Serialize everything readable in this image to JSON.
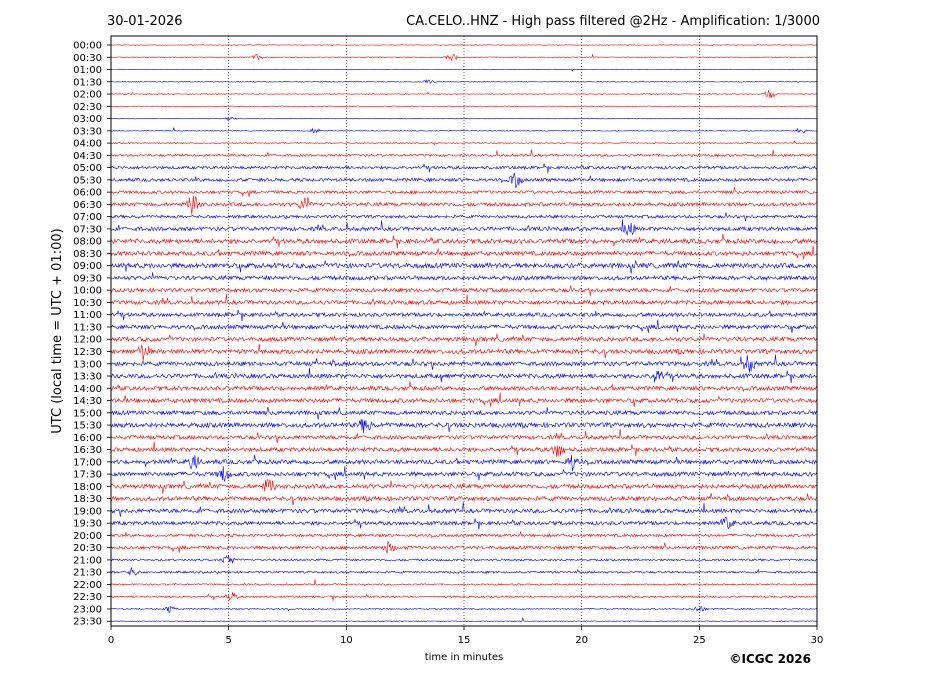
{
  "header": {
    "date": "30-01-2026",
    "title": "CA.CELO..HNZ - High pass filtered @2Hz - Amplification: 1/3000"
  },
  "footer": {
    "copyright": "©ICGC 2026"
  },
  "chart_data": {
    "type": "line",
    "title": "CA.CELO..HNZ - High pass filtered @2Hz - Amplification: 1/3000",
    "xlabel": "time in minutes",
    "ylabel": "UTC (local time = UTC + 01:00)",
    "xlim": [
      0,
      30
    ],
    "x_ticks": [
      0,
      5,
      10,
      15,
      20,
      25,
      30
    ],
    "x_tick_labels": [
      "0",
      "5",
      "10",
      "15",
      "20",
      "25",
      "30"
    ],
    "vertical_gridlines_at": [
      5,
      10,
      15,
      20,
      25
    ],
    "y_tick_labels": [
      "00:00",
      "00:30",
      "01:00",
      "01:30",
      "02:00",
      "02:30",
      "03:00",
      "03:30",
      "04:00",
      "04:30",
      "05:00",
      "05:30",
      "06:00",
      "06:30",
      "07:00",
      "07:30",
      "08:00",
      "08:30",
      "09:00",
      "09:30",
      "10:00",
      "10:30",
      "11:00",
      "11:30",
      "12:00",
      "12:30",
      "13:00",
      "13:30",
      "14:00",
      "14:30",
      "15:00",
      "15:30",
      "16:00",
      "16:30",
      "17:00",
      "17:30",
      "18:00",
      "18:30",
      "19:00",
      "19:30",
      "20:00",
      "20:30",
      "21:00",
      "21:30",
      "22:00",
      "22:30",
      "23:00",
      "23:30"
    ],
    "trace_colors": [
      "#ff0000",
      "#0000ff"
    ],
    "trace_color_pattern": "alternating per hour: red traces on even hours, blue traces on odd hours",
    "trace_activity": [
      0.02,
      0.06,
      0.02,
      0.05,
      0.06,
      0.02,
      0.03,
      0.05,
      0.12,
      0.38,
      0.55,
      0.6,
      0.55,
      0.7,
      0.55,
      0.75,
      0.9,
      0.85,
      1.0,
      0.8,
      0.75,
      0.8,
      0.75,
      0.8,
      0.85,
      0.9,
      0.85,
      0.85,
      0.8,
      0.85,
      0.8,
      0.95,
      0.75,
      0.8,
      0.85,
      0.85,
      0.85,
      0.85,
      0.8,
      0.7,
      0.5,
      0.6,
      0.35,
      0.35,
      0.25,
      0.25,
      0.15,
      0.05
    ],
    "events": [
      {
        "trace": "00:30",
        "minute": 6.2,
        "amplitude": 0.5
      },
      {
        "trace": "00:30",
        "minute": 14.5,
        "amplitude": 0.6
      },
      {
        "trace": "01:30",
        "minute": 13.5,
        "amplitude": 0.4
      },
      {
        "trace": "02:00",
        "minute": 28.0,
        "amplitude": 0.8
      },
      {
        "trace": "03:00",
        "minute": 5.1,
        "amplitude": 0.3
      },
      {
        "trace": "03:30",
        "minute": 8.7,
        "amplitude": 0.5
      },
      {
        "trace": "03:30",
        "minute": 29.3,
        "amplitude": 0.5
      },
      {
        "trace": "05:30",
        "minute": 17.2,
        "amplitude": 1.2
      },
      {
        "trace": "06:30",
        "minute": 3.5,
        "amplitude": 1.8
      },
      {
        "trace": "06:30",
        "minute": 8.2,
        "amplitude": 1.0
      },
      {
        "trace": "07:30",
        "minute": 22.0,
        "amplitude": 1.3
      },
      {
        "trace": "12:30",
        "minute": 1.4,
        "amplitude": 1.5
      },
      {
        "trace": "13:00",
        "minute": 27.1,
        "amplitude": 1.4
      },
      {
        "trace": "13:30",
        "minute": 23.2,
        "amplitude": 1.4
      },
      {
        "trace": "15:30",
        "minute": 10.8,
        "amplitude": 1.3
      },
      {
        "trace": "16:30",
        "minute": 19.0,
        "amplitude": 1.2
      },
      {
        "trace": "17:00",
        "minute": 3.5,
        "amplitude": 1.2
      },
      {
        "trace": "17:00",
        "minute": 19.6,
        "amplitude": 1.2
      },
      {
        "trace": "17:30",
        "minute": 4.8,
        "amplitude": 1.2
      },
      {
        "trace": "18:00",
        "minute": 6.7,
        "amplitude": 1.3
      },
      {
        "trace": "19:30",
        "minute": 26.2,
        "amplitude": 1.0
      },
      {
        "trace": "20:30",
        "minute": 11.8,
        "amplitude": 0.9
      },
      {
        "trace": "21:00",
        "minute": 5.0,
        "amplitude": 1.0
      },
      {
        "trace": "21:30",
        "minute": 0.9,
        "amplitude": 0.7
      },
      {
        "trace": "22:30",
        "minute": 5.1,
        "amplitude": 0.8
      },
      {
        "trace": "23:00",
        "minute": 2.5,
        "amplitude": 0.6
      },
      {
        "trace": "23:00",
        "minute": 25.0,
        "amplitude": 0.6
      }
    ],
    "grid": "vertical dotted lines at 5-minute intervals",
    "legend": "none"
  }
}
